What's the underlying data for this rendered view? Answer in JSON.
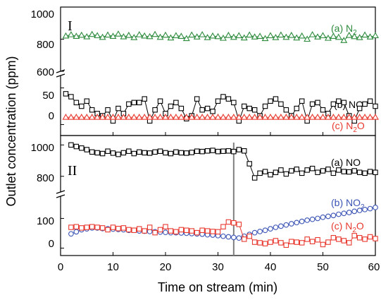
{
  "chart_data": [
    {
      "type": "scatter",
      "panel_label": "I",
      "xlim": [
        0,
        60
      ],
      "upper_segment": {
        "ylim": [
          600,
          1000
        ],
        "yticks": [
          "600",
          "800",
          "1000"
        ]
      },
      "lower_segment": {
        "ylim": [
          -15,
          65
        ],
        "yticks": [
          "0",
          "50"
        ]
      },
      "series": [
        {
          "name": "(a) N2",
          "label": {
            "main": "(a) N",
            "sub": "2"
          },
          "segment": "upper",
          "color": "#2e8b3e",
          "marker": "triangle",
          "x_start": 1,
          "x_step": 1,
          "values": [
            820,
            828,
            818,
            825,
            815,
            830,
            822,
            812,
            826,
            818,
            832,
            815,
            824,
            810,
            828,
            820,
            816,
            830,
            812,
            825,
            808,
            822,
            818,
            804,
            826,
            814,
            828,
            810,
            820,
            816,
            806,
            824,
            812,
            822,
            808,
            826,
            814,
            818,
            804,
            822,
            810,
            826,
            812,
            824,
            808,
            820,
            800,
            828,
            814,
            822,
            806,
            818,
            812,
            792,
            824,
            816,
            810,
            826,
            814,
            822
          ]
        },
        {
          "name": "(b) NO",
          "label": {
            "main": "(b) NO",
            "sub": ""
          },
          "segment": "lower",
          "color": "#000000",
          "marker": "square",
          "x_start": 1,
          "x_step": 1,
          "values": [
            42,
            38,
            30,
            25,
            32,
            20,
            15,
            12,
            20,
            5,
            22,
            15,
            28,
            30,
            30,
            35,
            5,
            20,
            32,
            15,
            25,
            30,
            22,
            8,
            12,
            35,
            20,
            22,
            18,
            32,
            38,
            35,
            30,
            5,
            25,
            22,
            20,
            12,
            25,
            32,
            35,
            28,
            20,
            12,
            22,
            32,
            5,
            28,
            30,
            20,
            15,
            28,
            32,
            30,
            12,
            5,
            22,
            28,
            32,
            25
          ]
        },
        {
          "name": "(c) N2O",
          "label": {
            "main": "(c) N",
            "sub": "2",
            "tail": "O"
          },
          "segment": "lower",
          "color": "#e8392f",
          "marker": "triangle",
          "x_start": 1,
          "x_step": 1,
          "values": [
            10,
            10,
            10,
            10,
            10,
            10,
            10,
            10,
            10,
            10,
            10,
            10,
            10,
            10,
            10,
            10,
            10,
            10,
            10,
            10,
            10,
            10,
            10,
            10,
            10,
            10,
            10,
            10,
            10,
            10,
            10,
            10,
            10,
            10,
            10,
            10,
            10,
            10,
            10,
            10,
            10,
            10,
            10,
            10,
            10,
            10,
            10,
            10,
            10,
            10,
            10,
            10,
            10,
            10,
            10,
            10,
            10,
            10,
            10,
            10
          ]
        }
      ]
    },
    {
      "type": "scatter",
      "panel_label": "II",
      "xlim": [
        0,
        60
      ],
      "xticks": [
        "0",
        "10",
        "20",
        "30",
        "40",
        "50",
        "60"
      ],
      "xlabel": "Time on stream (min)",
      "ylabel": "Outlet concentration (ppm)",
      "vline_x": 33,
      "upper_segment": {
        "ylim": [
          700,
          1060
        ],
        "yticks": [
          "800",
          "1000"
        ]
      },
      "lower_segment": {
        "ylim": [
          -25,
          170
        ],
        "yticks": [
          "0",
          "100"
        ]
      },
      "series": [
        {
          "name": "(a) NO",
          "label": {
            "main": "(a) NO",
            "sub": ""
          },
          "segment": "upper",
          "color": "#000000",
          "marker": "square",
          "x_start": 2,
          "x_step": 1,
          "values": [
            1000,
            990,
            980,
            970,
            955,
            950,
            945,
            960,
            948,
            940,
            950,
            960,
            945,
            955,
            950,
            948,
            955,
            960,
            950,
            945,
            955,
            950,
            948,
            952,
            960,
            958,
            962,
            965,
            958,
            960,
            962,
            958,
            970,
            962,
            880,
            790,
            820,
            830,
            810,
            825,
            840,
            815,
            835,
            845,
            820,
            840,
            850,
            825,
            835,
            845,
            820,
            840,
            830,
            828,
            835,
            825,
            820,
            830,
            825
          ]
        },
        {
          "name": "(b) NO2",
          "label": {
            "main": "(b) NO",
            "sub": "2"
          },
          "segment": "lower",
          "color": "#3b54b4",
          "marker": "circle",
          "x_start": 2,
          "x_step": 1,
          "values": [
            48,
            55,
            62,
            65,
            68,
            68,
            66,
            65,
            64,
            63,
            62,
            60,
            60,
            58,
            57,
            56,
            55,
            54,
            53,
            52,
            52,
            51,
            50,
            49,
            48,
            47,
            45,
            44,
            42,
            40,
            38,
            36,
            34,
            40,
            46,
            52,
            56,
            60,
            65,
            70,
            74,
            78,
            82,
            86,
            90,
            94,
            97,
            100,
            104,
            107,
            110,
            114,
            117,
            120,
            124,
            127,
            130,
            133,
            137
          ]
        },
        {
          "name": "(c) N2O",
          "label": {
            "main": "(c) N",
            "sub": "2",
            "tail": "O"
          },
          "segment": "lower",
          "color": "#e8392f",
          "marker": "square",
          "x_start": 2,
          "x_step": 1,
          "values": [
            70,
            72,
            68,
            70,
            72,
            70,
            68,
            62,
            70,
            66,
            68,
            62,
            60,
            65,
            58,
            70,
            52,
            62,
            72,
            58,
            55,
            62,
            60,
            58,
            52,
            60,
            58,
            56,
            55,
            72,
            88,
            85,
            80,
            30,
            40,
            20,
            18,
            15,
            20,
            25,
            18,
            10,
            22,
            20,
            18,
            30,
            22,
            28,
            12,
            20,
            35,
            30,
            25,
            18,
            42,
            35,
            30,
            38,
            32
          ]
        }
      ]
    }
  ]
}
